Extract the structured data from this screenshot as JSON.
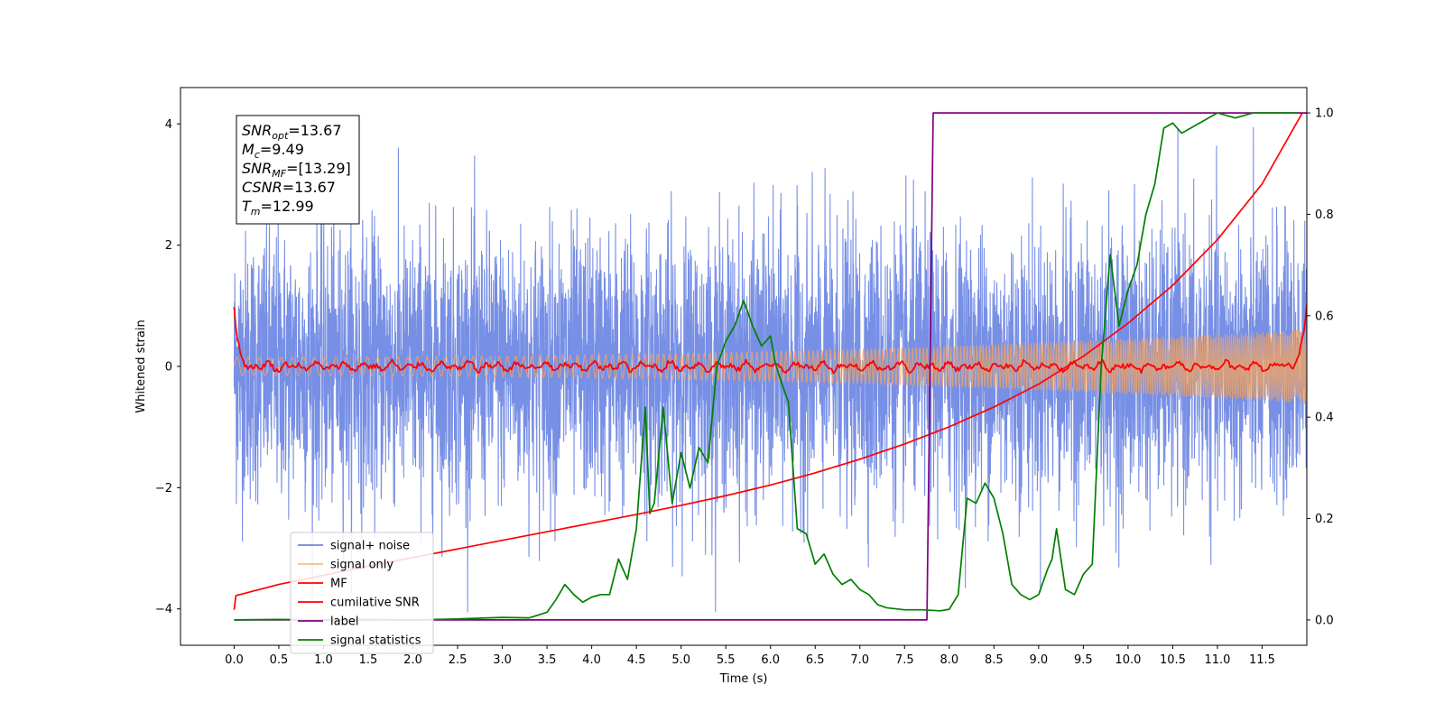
{
  "chart_data": {
    "type": "line",
    "xlabel": "Time (s)",
    "ylabel": "Whitened strain",
    "xlim": [
      -0.6,
      12.0
    ],
    "ylim": [
      -4.6,
      4.6
    ],
    "y2lim": [
      -0.05,
      1.05
    ],
    "x_ticks": [
      0.0,
      0.5,
      1.0,
      1.5,
      2.0,
      2.5,
      3.0,
      3.5,
      4.0,
      4.5,
      5.0,
      5.5,
      6.0,
      6.5,
      7.0,
      7.5,
      8.0,
      8.5,
      9.0,
      9.5,
      10.0,
      10.5,
      11.0,
      11.5
    ],
    "x_tick_labels": [
      "0.0",
      "0.5",
      "1.0",
      "1.5",
      "2.0",
      "2.5",
      "3.0",
      "3.5",
      "4.0",
      "4.5",
      "5.0",
      "5.5",
      "6.0",
      "6.5",
      "7.0",
      "7.5",
      "8.0",
      "8.5",
      "9.0",
      "9.5",
      "10.0",
      "10.5",
      "11.0",
      "11.5"
    ],
    "y_ticks": [
      -4,
      -2,
      0,
      2,
      4
    ],
    "y_tick_labels": [
      "−4",
      "−2",
      "0",
      "2",
      "4"
    ],
    "y2_ticks": [
      0.0,
      0.2,
      0.4,
      0.6,
      0.8,
      1.0
    ],
    "y2_tick_labels": [
      "0.0",
      "0.2",
      "0.4",
      "0.6",
      "0.8",
      "1.0"
    ],
    "grid": false,
    "legend_position": "lower-left",
    "annotation": [
      {
        "sym": "SNR",
        "sub": "opt",
        "value": "=13.67"
      },
      {
        "sym": "M",
        "sub": "c",
        "value": "=9.49"
      },
      {
        "sym": "SNR",
        "sub": "MF",
        "value": "=[13.29]"
      },
      {
        "sym": "CSNR",
        "sub": "",
        "value": "=13.67"
      },
      {
        "sym": "T",
        "sub": "m",
        "value": "=12.99"
      }
    ],
    "series": [
      {
        "name": "signal+ noise",
        "axis": "left",
        "color": "#6b86e3",
        "kind": "noise",
        "x_range": [
          0.0,
          12.0
        ],
        "approx_std": 1.1,
        "approx_peak_range": [
          -4.05,
          4.15
        ]
      },
      {
        "name": "signal only",
        "axis": "left",
        "color": "#f4a460",
        "kind": "chirp",
        "x_range": [
          0.0,
          12.0
        ],
        "amplitude_start": 0.15,
        "amplitude_end": 0.6
      },
      {
        "name": "MF",
        "axis": "left",
        "color": "#ff0000",
        "kind": "filter",
        "x_range": [
          0.0,
          12.0
        ],
        "start_value": 1.0,
        "end_value": 1.0,
        "baseline": 0.0,
        "ripple": 0.08
      },
      {
        "name": "cumilative SNR",
        "axis": "right",
        "color": "#ff0000",
        "x": [
          0.0,
          0.02,
          0.5,
          1.0,
          1.5,
          2.0,
          2.5,
          3.0,
          3.5,
          4.0,
          4.5,
          5.0,
          5.5,
          6.0,
          6.5,
          7.0,
          7.5,
          8.0,
          8.5,
          9.0,
          9.5,
          10.0,
          10.5,
          11.0,
          11.5,
          11.95
        ],
        "values": [
          0.02,
          0.048,
          0.07,
          0.088,
          0.106,
          0.123,
          0.14,
          0.157,
          0.174,
          0.191,
          0.208,
          0.226,
          0.245,
          0.266,
          0.29,
          0.317,
          0.347,
          0.381,
          0.42,
          0.465,
          0.52,
          0.585,
          0.66,
          0.75,
          0.86,
          1.0
        ]
      },
      {
        "name": "label",
        "axis": "right",
        "color": "#800080",
        "x": [
          0.0,
          7.75,
          7.75,
          7.82,
          7.82,
          12.0
        ],
        "values": [
          0.0,
          0.0,
          0.0,
          1.0,
          1.0,
          1.0
        ]
      },
      {
        "name": "signal statistics",
        "axis": "right",
        "color": "#008000",
        "x": [
          0.0,
          0.5,
          1.0,
          1.5,
          2.0,
          2.5,
          3.0,
          3.3,
          3.5,
          3.6,
          3.7,
          3.8,
          3.9,
          4.0,
          4.1,
          4.2,
          4.3,
          4.4,
          4.5,
          4.6,
          4.65,
          4.7,
          4.8,
          4.9,
          5.0,
          5.1,
          5.2,
          5.3,
          5.4,
          5.5,
          5.6,
          5.7,
          5.8,
          5.9,
          6.0,
          6.05,
          6.1,
          6.2,
          6.3,
          6.4,
          6.5,
          6.6,
          6.7,
          6.8,
          6.9,
          7.0,
          7.1,
          7.2,
          7.3,
          7.5,
          7.7,
          7.9,
          8.0,
          8.1,
          8.2,
          8.3,
          8.4,
          8.5,
          8.6,
          8.7,
          8.8,
          8.9,
          9.0,
          9.1,
          9.15,
          9.2,
          9.3,
          9.4,
          9.5,
          9.6,
          9.7,
          9.8,
          9.9,
          10.0,
          10.1,
          10.2,
          10.3,
          10.4,
          10.5,
          10.6,
          10.7,
          10.8,
          10.9,
          11.0,
          11.2,
          11.4,
          11.6,
          11.8,
          11.9
        ],
        "values": [
          0.0,
          0.001,
          0.0,
          0.001,
          0.0,
          0.002,
          0.005,
          0.004,
          0.015,
          0.04,
          0.07,
          0.05,
          0.035,
          0.045,
          0.05,
          0.05,
          0.12,
          0.08,
          0.18,
          0.42,
          0.21,
          0.23,
          0.42,
          0.23,
          0.33,
          0.26,
          0.34,
          0.31,
          0.5,
          0.55,
          0.58,
          0.63,
          0.58,
          0.54,
          0.56,
          0.51,
          0.48,
          0.43,
          0.18,
          0.17,
          0.11,
          0.13,
          0.09,
          0.07,
          0.08,
          0.06,
          0.05,
          0.03,
          0.024,
          0.02,
          0.02,
          0.018,
          0.021,
          0.05,
          0.24,
          0.23,
          0.27,
          0.24,
          0.17,
          0.07,
          0.05,
          0.04,
          0.05,
          0.1,
          0.12,
          0.18,
          0.06,
          0.05,
          0.09,
          0.11,
          0.5,
          0.72,
          0.58,
          0.65,
          0.7,
          0.8,
          0.86,
          0.97,
          0.98,
          0.96,
          0.97,
          0.98,
          0.99,
          1.0,
          0.99,
          1.0,
          1.0,
          1.0,
          1.0
        ]
      }
    ]
  }
}
